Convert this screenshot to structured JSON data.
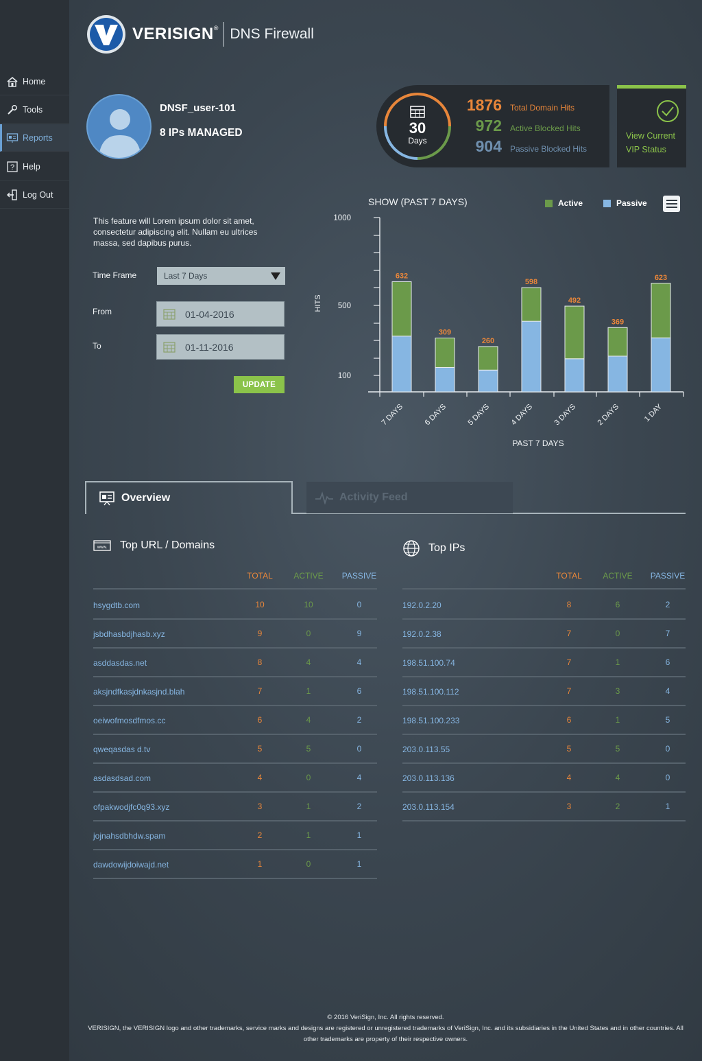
{
  "header": {
    "brand": "VERISIGN",
    "brand_mark": "®",
    "product": "DNS Firewall"
  },
  "sidebar": {
    "items": [
      {
        "label": "Home",
        "icon": "home-icon"
      },
      {
        "label": "Tools",
        "icon": "wrench-icon"
      },
      {
        "label": "Reports",
        "icon": "reports-icon",
        "active": true
      },
      {
        "label": "Help",
        "icon": "help-icon"
      },
      {
        "label": "Log Out",
        "icon": "logout-icon"
      }
    ]
  },
  "user": {
    "name": "DNSF_user-101",
    "ips_managed": "8 IPs MANAGED"
  },
  "stats": {
    "period_number": "30",
    "period_unit": "Days",
    "total_hits": "1876",
    "total_hits_label": "Total Domain Hits",
    "active_blocked": "972",
    "active_blocked_label": "Active Blocked Hits",
    "passive_blocked": "904",
    "passive_blocked_label": "Passive Blocked Hits"
  },
  "vip": {
    "line1": "View Current",
    "line2": "VIP Status"
  },
  "form": {
    "description": "This feature will Lorem ipsum dolor sit amet, consectetur adipiscing elit. Nullam eu ultrices massa, sed dapibus purus.",
    "timeframe_label": "Time Frame",
    "timeframe_value": "Last 7 Days",
    "from_label": "From",
    "from_value": "01-04-2016",
    "to_label": "To",
    "to_value": "01-11-2016",
    "update_label": "UPDATE"
  },
  "colors": {
    "active": "#6b9a4a",
    "passive": "#86b6e2",
    "total": "#e8863a",
    "accent_green": "#8bc34a"
  },
  "chart_data": {
    "type": "bar",
    "title": "SHOW (PAST 7 DAYS)",
    "xlabel": "PAST 7 DAYS",
    "ylabel": "HITS",
    "ytick_labels": [
      "1000",
      "500",
      "100"
    ],
    "categories": [
      "7 DAYS",
      "6 DAYS",
      "5 DAYS",
      "4 DAYS",
      "3 DAYS",
      "2 DAYS",
      "1 DAY"
    ],
    "totals": [
      632,
      309,
      260,
      598,
      492,
      369,
      623
    ],
    "series": [
      {
        "name": "Active",
        "values": [
          312,
          169,
          135,
          193,
          302,
          164,
          313
        ]
      },
      {
        "name": "Passive",
        "values": [
          320,
          140,
          125,
          405,
          190,
          205,
          310
        ]
      }
    ],
    "legend": "top-right"
  },
  "tabs": {
    "overview": "Overview",
    "activity": "Activity Feed"
  },
  "top_urls": {
    "title": "Top URL / Domains",
    "headers": [
      "TOTAL",
      "ACTIVE",
      "PASSIVE"
    ],
    "rows": [
      {
        "name": "hsygdtb.com",
        "total": "10",
        "active": "10",
        "passive": "0"
      },
      {
        "name": "jsbdhasbdjhasb.xyz",
        "total": "9",
        "active": "0",
        "passive": "9"
      },
      {
        "name": "asddasdas.net",
        "total": "8",
        "active": "4",
        "passive": "4"
      },
      {
        "name": "aksjndfkasjdnkasjnd.blah",
        "total": "7",
        "active": "1",
        "passive": "6"
      },
      {
        "name": "oeiwofmosdfmos.cc",
        "total": "6",
        "active": "4",
        "passive": "2"
      },
      {
        "name": "qweqasdas d.tv",
        "total": "5",
        "active": "5",
        "passive": "0"
      },
      {
        "name": "asdasdsad.com",
        "total": "4",
        "active": "0",
        "passive": "4"
      },
      {
        "name": "ofpakwodjfc0q93.xyz",
        "total": "3",
        "active": "1",
        "passive": "2"
      },
      {
        "name": "jojnahsdbhdw.spam",
        "total": "2",
        "active": "1",
        "passive": "1"
      },
      {
        "name": "dawdowijdoiwajd.net",
        "total": "1",
        "active": "0",
        "passive": "1"
      }
    ]
  },
  "top_ips": {
    "title": "Top IPs",
    "headers": [
      "TOTAL",
      "ACTIVE",
      "PASSIVE"
    ],
    "rows": [
      {
        "name": "192.0.2.20",
        "total": "8",
        "active": "6",
        "passive": "2"
      },
      {
        "name": "192.0.2.38",
        "total": "7",
        "active": "0",
        "passive": "7"
      },
      {
        "name": "198.51.100.74",
        "total": "7",
        "active": "1",
        "passive": "6"
      },
      {
        "name": "198.51.100.112",
        "total": "7",
        "active": "3",
        "passive": "4"
      },
      {
        "name": "198.51.100.233",
        "total": "6",
        "active": "1",
        "passive": "5"
      },
      {
        "name": "203.0.113.55",
        "total": "5",
        "active": "5",
        "passive": "0"
      },
      {
        "name": "203.0.113.136",
        "total": "4",
        "active": "4",
        "passive": "0"
      },
      {
        "name": "203.0.113.154",
        "total": "3",
        "active": "2",
        "passive": "1"
      }
    ]
  },
  "footer": {
    "line1": "© 2016 VeriSign, Inc. All rights reserved.",
    "line2": "VERISIGN, the VERISIGN logo and other trademarks, service marks and designs are registered or unregistered trademarks of VeriSign, Inc. and its subsidiaries in the United States and in other countries. All other trademarks are property of their respective owners."
  }
}
